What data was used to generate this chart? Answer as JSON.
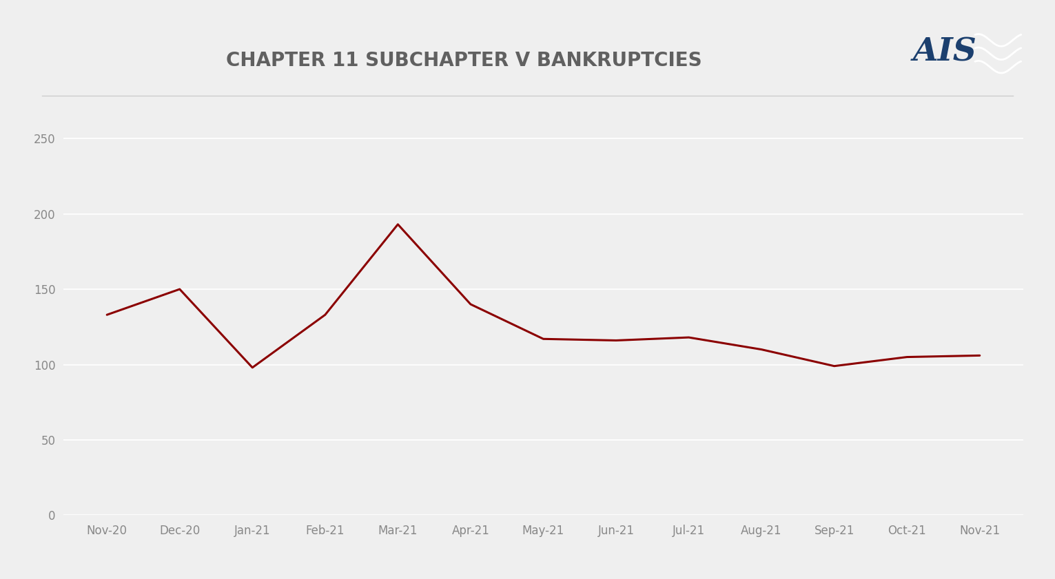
{
  "title": "CHAPTER 11 SUBCHAPTER V BANKRUPTCIES",
  "categories": [
    "Nov-20",
    "Dec-20",
    "Jan-21",
    "Feb-21",
    "Mar-21",
    "Apr-21",
    "May-21",
    "Jun-21",
    "Jul-21",
    "Aug-21",
    "Sep-21",
    "Oct-21",
    "Nov-21"
  ],
  "values": [
    133,
    150,
    98,
    133,
    193,
    140,
    117,
    116,
    118,
    110,
    99,
    105,
    106
  ],
  "line_color": "#8B0000",
  "line_width": 2.2,
  "background_color": "#EFEFEF",
  "plot_bg_color": "#EFEFEF",
  "title_fontsize": 20,
  "title_color": "#606060",
  "tick_fontsize": 12,
  "tick_color": "#888888",
  "ylim": [
    0,
    265
  ],
  "yticks": [
    0,
    50,
    100,
    150,
    200,
    250
  ],
  "grid_color": "#FFFFFF",
  "grid_linewidth": 1.2,
  "ais_text_color": "#1B3F6E",
  "ais_box_color": "#B22020",
  "separator_color": "#CCCCCC"
}
